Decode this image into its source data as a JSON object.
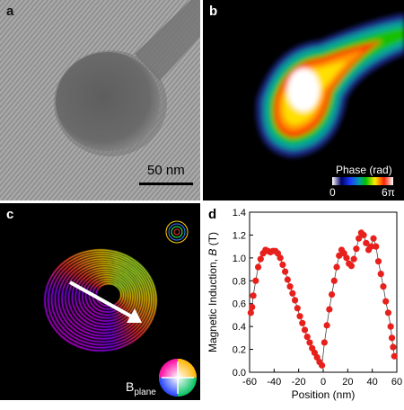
{
  "panels": {
    "a": {
      "letter": "a",
      "scale_bar_label": "50 nm"
    },
    "b": {
      "letter": "b",
      "colorbar_title": "Phase (rad)",
      "colorbar_min": "0",
      "colorbar_max": "6π"
    },
    "c": {
      "letter": "c",
      "wheel_label_main": "B",
      "wheel_label_sub": "plane"
    },
    "d": {
      "letter": "d"
    }
  },
  "chart_data": {
    "type": "scatter",
    "title": "",
    "xlabel": "Position (nm)",
    "ylabel_main": "Magnetic Induction, ",
    "ylabel_var": "B",
    "ylabel_unit": " (T)",
    "xlim": [
      -60,
      60
    ],
    "ylim": [
      0.0,
      1.4
    ],
    "xticks": [
      -60,
      -40,
      -20,
      0,
      20,
      40,
      60
    ],
    "yticks": [
      0.0,
      0.2,
      0.4,
      0.6,
      0.8,
      1.0,
      1.2,
      1.4
    ],
    "marker_color": "#e8201c",
    "line_color": "#444444",
    "x": [
      -59,
      -58,
      -57,
      -55,
      -53,
      -51,
      -49,
      -47,
      -45,
      -43,
      -41,
      -39,
      -37,
      -35,
      -33,
      -31,
      -29,
      -27,
      -25,
      -23,
      -21,
      -19,
      -17,
      -15,
      -13,
      -11,
      -9,
      -7,
      -5,
      -3,
      -1,
      1,
      3,
      5,
      7,
      9,
      11,
      13,
      15,
      17,
      19,
      21,
      23,
      25,
      27,
      29,
      31,
      33,
      35,
      37,
      39,
      41,
      43,
      45,
      47,
      49,
      51,
      53,
      55,
      56,
      57,
      58
    ],
    "y": [
      0.52,
      0.57,
      0.67,
      0.8,
      0.92,
      0.99,
      1.04,
      1.07,
      1.06,
      1.05,
      1.06,
      1.06,
      1.04,
      1.0,
      0.94,
      0.88,
      0.81,
      0.75,
      0.69,
      0.63,
      0.56,
      0.49,
      0.43,
      0.37,
      0.31,
      0.26,
      0.21,
      0.17,
      0.13,
      0.09,
      0.06,
      0.26,
      0.41,
      0.55,
      0.68,
      0.8,
      0.92,
      1.02,
      1.07,
      1.04,
      1.0,
      0.95,
      0.93,
      0.99,
      1.08,
      1.17,
      1.22,
      1.2,
      1.13,
      1.07,
      1.1,
      1.17,
      1.1,
      0.97,
      0.86,
      0.75,
      0.62,
      0.52,
      0.4,
      0.3,
      0.22,
      0.14
    ]
  }
}
